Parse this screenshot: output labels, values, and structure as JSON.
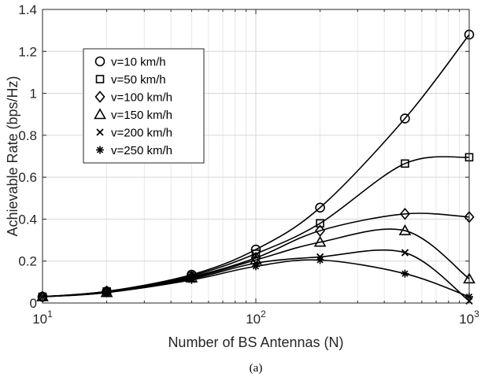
{
  "chart_data": {
    "type": "line",
    "xscale": "log",
    "xlim": [
      10,
      1000
    ],
    "ylim": [
      0,
      1.4
    ],
    "xlabel": "Number of BS Antennas (N)",
    "ylabel": "Achievable Rate (bps/Hz)",
    "x_ticks": [
      {
        "value": 10,
        "base": "10",
        "exp": "1"
      },
      {
        "value": 100,
        "base": "10",
        "exp": "2"
      },
      {
        "value": 1000,
        "base": "10",
        "exp": "3"
      }
    ],
    "y_ticks": [
      "0",
      "0.2",
      "0.4",
      "0.6",
      "0.8",
      "1",
      "1.2",
      "1.4"
    ],
    "grid": true,
    "legend_position": "top-left",
    "caption": "(a)",
    "x": [
      10,
      20,
      50,
      100,
      200,
      500,
      1000
    ],
    "series": [
      {
        "name": "v=10 km/h",
        "marker": "circle",
        "values": [
          0.03,
          0.055,
          0.135,
          0.255,
          0.455,
          0.88,
          1.28
        ]
      },
      {
        "name": "v=50 km/h",
        "marker": "square",
        "values": [
          0.03,
          0.055,
          0.13,
          0.235,
          0.38,
          0.665,
          0.695
        ]
      },
      {
        "name": "v=100 km/h",
        "marker": "diamond",
        "values": [
          0.03,
          0.055,
          0.125,
          0.215,
          0.345,
          0.425,
          0.41
        ]
      },
      {
        "name": "v=150 km/h",
        "marker": "triangle",
        "values": [
          0.03,
          0.05,
          0.12,
          0.205,
          0.29,
          0.345,
          0.115
        ]
      },
      {
        "name": "v=200 km/h",
        "marker": "x",
        "values": [
          0.03,
          0.05,
          0.115,
          0.19,
          0.22,
          0.24,
          0.01
        ]
      },
      {
        "name": "v=250 km/h",
        "marker": "asterisk",
        "values": [
          0.03,
          0.05,
          0.11,
          0.175,
          0.205,
          0.14,
          0.03
        ]
      }
    ]
  }
}
